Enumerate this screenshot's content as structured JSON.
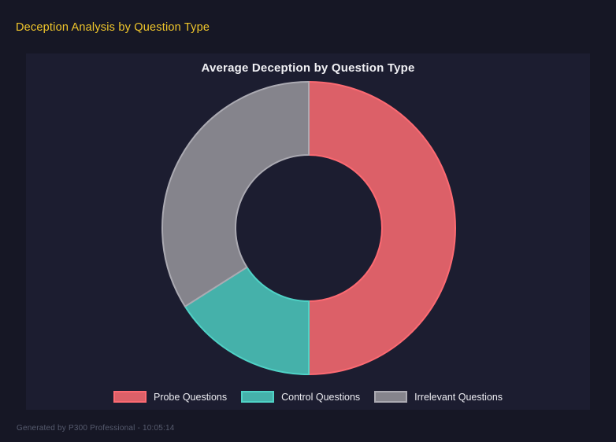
{
  "page": {
    "title": "Deception Analysis by Question Type",
    "footer": "Generated by P300 Professional - 10:05:14"
  },
  "colors": {
    "page_bg": "#161725",
    "panel_bg": "#1C1D30",
    "page_title": "#F0C62B",
    "chart_title": "#F0F0F4",
    "legend_text": "#ECECF1",
    "footer_text": "#565B6E"
  },
  "chart_data": {
    "type": "pie",
    "variant": "doughnut",
    "title": "Average Deception by Question Type",
    "categories": [
      "Probe Questions",
      "Control Questions",
      "Irrelevant Questions"
    ],
    "values_percent": [
      50,
      16,
      34
    ],
    "segments": [
      {
        "label": "Probe Questions",
        "percent": 50,
        "fill": "#DC6068",
        "border": "#FC6A72"
      },
      {
        "label": "Control Questions",
        "percent": 16,
        "fill": "#45B1AA",
        "border": "#4FD2C6"
      },
      {
        "label": "Irrelevant Questions",
        "percent": 34,
        "fill": "#85848C",
        "border": "#ABAAB2"
      }
    ],
    "cutout_percent": 50,
    "start_angle_deg": 0,
    "direction": "clockwise",
    "legend_position": "bottom",
    "grid": false
  }
}
